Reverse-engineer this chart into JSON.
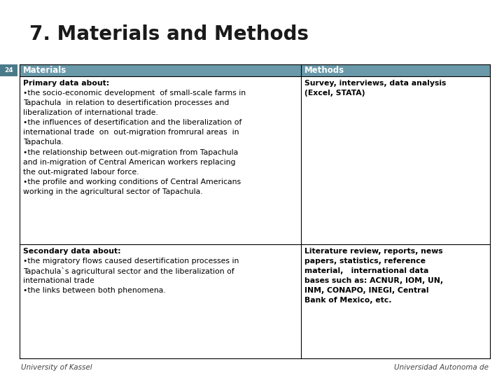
{
  "title": "7. Materials and Methods",
  "slide_number": "24",
  "slide_number_bg": "#4a7a8a",
  "header_bg": "#6a9aaa",
  "bg_color": "#ffffff",
  "col1_header": "Materials",
  "col2_header": "Methods",
  "row1_col1_bold": "Primary data about:",
  "row1_col1_lines": [
    "•the socio-economic development  of small-scale farms in",
    "Tapachula  in relation to desertification processes and",
    "liberalization of international trade.",
    "•the influences of desertification and the liberalization of",
    "international trade  on  out-migration fromrural areas  in",
    "Tapachula.",
    "•the relationship between out-migration from Tapachula",
    "and in-migration of Central American workers replacing",
    "the out-migrated labour force.",
    "•the profile and working conditions of Central Americans",
    "working in the agricultural sector of Tapachula."
  ],
  "row1_col2_bold_lines": [
    "Survey, interviews, data analysis",
    "(Excel, STATA)"
  ],
  "row2_col1_bold": "Secondary data about:",
  "row2_col1_lines": [
    "•the migratory flows caused desertification processes in",
    "Tapachula`s agricultural sector and the liberalization of",
    "international trade",
    "•the links between both phenomena."
  ],
  "row2_col2_bold_lines": [
    "Literature review, reports, news",
    "papers, statistics, reference",
    "material,   international data",
    "bases such as: ACNUR, IOM, UN,",
    "INM, CONAPO, INEGI, Central",
    "Bank of Mexico, etc."
  ],
  "footer_left": "University of Kassel",
  "footer_right": "Universidad Autonoma de",
  "title_fontsize": 20,
  "body_fontsize": 7.8,
  "header_fontsize": 8.5,
  "slide_num_fontsize": 6.5
}
